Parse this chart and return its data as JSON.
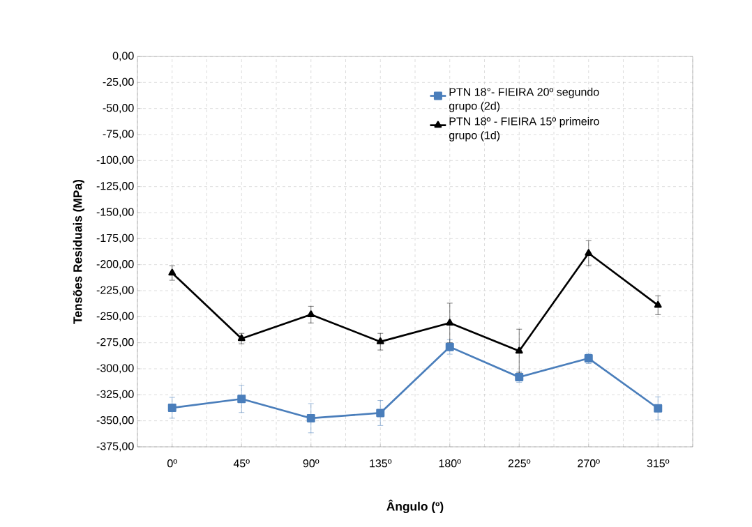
{
  "chart_data": {
    "type": "line",
    "xlabel": "Ângulo (º)",
    "ylabel": "Tensões Residuais  (MPa)",
    "categories": [
      "0º",
      "45º",
      "90º",
      "135º",
      "180º",
      "225º",
      "270º",
      "315º"
    ],
    "series": [
      {
        "name": "PTN  18°- FIEIRA 20º segundo grupo (2d)",
        "color": "#4a7ebb",
        "marker": "square",
        "values": [
          -337.5,
          -329,
          -347.5,
          -342.5,
          -279,
          -308,
          -290,
          -338
        ],
        "errors": [
          10,
          13,
          14,
          12,
          7,
          5,
          5,
          11
        ]
      },
      {
        "name": "PTN 18º - FIEIRA 15º primeiro grupo (1d)",
        "color": "#000000",
        "marker": "triangle",
        "values": [
          -208,
          -271,
          -248,
          -274,
          -256,
          -283,
          -189,
          -239
        ],
        "errors": [
          7,
          5,
          8,
          8,
          19,
          21,
          12,
          9
        ]
      }
    ],
    "ylim": [
      -375,
      0
    ],
    "yticks": [
      {
        "value": 0,
        "label": "0,00"
      },
      {
        "value": -25,
        "label": "-25,00"
      },
      {
        "value": -50,
        "label": "-50,00"
      },
      {
        "value": -75,
        "label": "-75,00"
      },
      {
        "value": -100,
        "label": "-100,00"
      },
      {
        "value": -125,
        "label": "-125,00"
      },
      {
        "value": -150,
        "label": "-150,00"
      },
      {
        "value": -175,
        "label": "-175,00"
      },
      {
        "value": -200,
        "label": "-200,00"
      },
      {
        "value": -225,
        "label": "-225,00"
      },
      {
        "value": -250,
        "label": "-250,00"
      },
      {
        "value": -275,
        "label": "-275,00"
      },
      {
        "value": -300,
        "label": "-300,00"
      },
      {
        "value": -325,
        "label": "-325,00"
      },
      {
        "value": -350,
        "label": "-350,00"
      },
      {
        "value": -375,
        "label": "-375,00"
      }
    ],
    "grid": true,
    "legend": "top right"
  }
}
